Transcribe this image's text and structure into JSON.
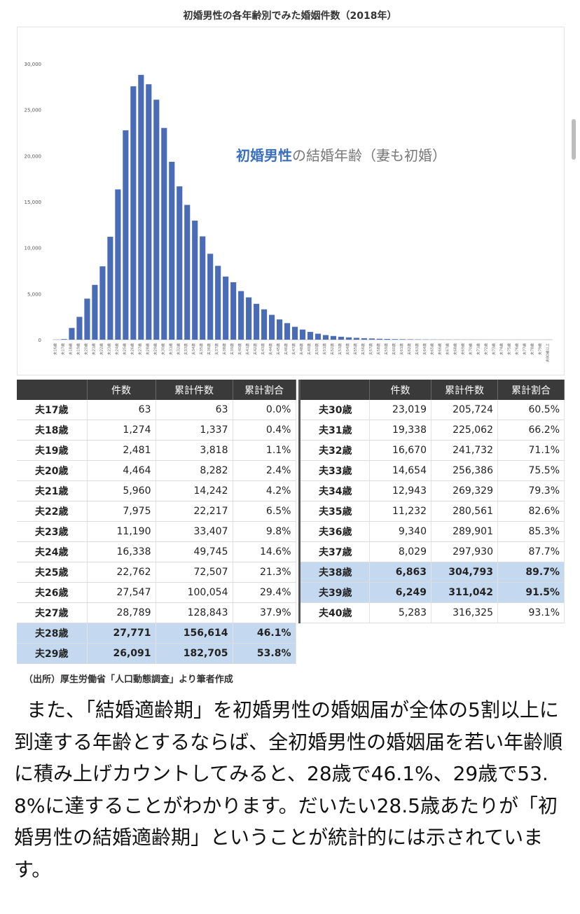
{
  "chart_data": {
    "type": "bar",
    "title": "初婚男性の各年齢別でみた婚姻件数（2018年）",
    "annotation": {
      "highlight": "初婚男性",
      "rest": "の結婚年齢（妻も初婚）"
    },
    "ylim": [
      0,
      30000
    ],
    "yticks": [
      "0",
      "5,000",
      "10,000",
      "15,000",
      "20,000",
      "25,000",
      "30,000"
    ],
    "grid": false,
    "bar_color": "#4a6bb5",
    "categories": [
      "夫16歳",
      "夫17歳",
      "夫18歳",
      "夫19歳",
      "夫20歳",
      "夫21歳",
      "夫22歳",
      "夫23歳",
      "夫24歳",
      "夫25歳",
      "夫26歳",
      "夫27歳",
      "夫28歳",
      "夫29歳",
      "夫30歳",
      "夫31歳",
      "夫32歳",
      "夫33歳",
      "夫34歳",
      "夫35歳",
      "夫36歳",
      "夫37歳",
      "夫38歳",
      "夫39歳",
      "夫40歳",
      "夫41歳",
      "夫42歳",
      "夫43歳",
      "夫44歳",
      "夫45歳",
      "夫46歳",
      "夫47歳",
      "夫48歳",
      "夫49歳",
      "夫50歳",
      "夫51歳",
      "夫52歳",
      "夫53歳",
      "夫54歳",
      "夫55歳",
      "夫56歳",
      "夫57歳",
      "夫58歳",
      "夫59歳",
      "夫60歳",
      "夫61歳",
      "夫62歳",
      "夫63歳",
      "夫64歳",
      "夫65歳",
      "夫66歳",
      "夫67歳",
      "夫68歳",
      "夫69歳",
      "夫70歳",
      "夫71歳",
      "夫72歳",
      "夫73歳",
      "夫74歳",
      "夫75歳",
      "夫76歳",
      "夫77歳",
      "夫78歳",
      "夫79歳",
      "夫80歳以上"
    ],
    "values": [
      10,
      63,
      1274,
      2481,
      4464,
      5960,
      7975,
      11190,
      16338,
      22762,
      27547,
      28789,
      27771,
      26091,
      23019,
      19338,
      16670,
      14654,
      12943,
      11232,
      9340,
      8029,
      6863,
      6249,
      5283,
      4600,
      3900,
      3300,
      2700,
      2200,
      1800,
      1400,
      1100,
      850,
      650,
      500,
      400,
      320,
      250,
      200,
      160,
      130,
      100,
      80,
      60,
      50,
      40,
      30,
      25,
      20,
      15,
      12,
      10,
      8,
      6,
      5,
      4,
      3,
      3,
      2,
      2,
      1,
      1,
      1,
      5
    ]
  },
  "tables": {
    "headers": [
      "",
      "件数",
      "累計件数",
      "累計割合"
    ],
    "left": [
      {
        "age": "夫17歳",
        "count": "63",
        "cumulative": "63",
        "ratio": "0.0%",
        "hl": false
      },
      {
        "age": "夫18歳",
        "count": "1,274",
        "cumulative": "1,337",
        "ratio": "0.4%",
        "hl": false
      },
      {
        "age": "夫19歳",
        "count": "2,481",
        "cumulative": "3,818",
        "ratio": "1.1%",
        "hl": false
      },
      {
        "age": "夫20歳",
        "count": "4,464",
        "cumulative": "8,282",
        "ratio": "2.4%",
        "hl": false
      },
      {
        "age": "夫21歳",
        "count": "5,960",
        "cumulative": "14,242",
        "ratio": "4.2%",
        "hl": false
      },
      {
        "age": "夫22歳",
        "count": "7,975",
        "cumulative": "22,217",
        "ratio": "6.5%",
        "hl": false
      },
      {
        "age": "夫23歳",
        "count": "11,190",
        "cumulative": "33,407",
        "ratio": "9.8%",
        "hl": false
      },
      {
        "age": "夫24歳",
        "count": "16,338",
        "cumulative": "49,745",
        "ratio": "14.6%",
        "hl": false
      },
      {
        "age": "夫25歳",
        "count": "22,762",
        "cumulative": "72,507",
        "ratio": "21.3%",
        "hl": false
      },
      {
        "age": "夫26歳",
        "count": "27,547",
        "cumulative": "100,054",
        "ratio": "29.4%",
        "hl": false
      },
      {
        "age": "夫27歳",
        "count": "28,789",
        "cumulative": "128,843",
        "ratio": "37.9%",
        "hl": false
      },
      {
        "age": "夫28歳",
        "count": "27,771",
        "cumulative": "156,614",
        "ratio": "46.1%",
        "hl": true
      },
      {
        "age": "夫29歳",
        "count": "26,091",
        "cumulative": "182,705",
        "ratio": "53.8%",
        "hl": true
      }
    ],
    "right": [
      {
        "age": "夫30歳",
        "count": "23,019",
        "cumulative": "205,724",
        "ratio": "60.5%",
        "hl": false
      },
      {
        "age": "夫31歳",
        "count": "19,338",
        "cumulative": "225,062",
        "ratio": "66.2%",
        "hl": false
      },
      {
        "age": "夫32歳",
        "count": "16,670",
        "cumulative": "241,732",
        "ratio": "71.1%",
        "hl": false
      },
      {
        "age": "夫33歳",
        "count": "14,654",
        "cumulative": "256,386",
        "ratio": "75.5%",
        "hl": false
      },
      {
        "age": "夫34歳",
        "count": "12,943",
        "cumulative": "269,329",
        "ratio": "79.3%",
        "hl": false
      },
      {
        "age": "夫35歳",
        "count": "11,232",
        "cumulative": "280,561",
        "ratio": "82.6%",
        "hl": false
      },
      {
        "age": "夫36歳",
        "count": "9,340",
        "cumulative": "289,901",
        "ratio": "85.3%",
        "hl": false
      },
      {
        "age": "夫37歳",
        "count": "8,029",
        "cumulative": "297,930",
        "ratio": "87.7%",
        "hl": false
      },
      {
        "age": "夫38歳",
        "count": "6,863",
        "cumulative": "304,793",
        "ratio": "89.7%",
        "hl": true
      },
      {
        "age": "夫39歳",
        "count": "6,249",
        "cumulative": "311,042",
        "ratio": "91.5%",
        "hl": true
      },
      {
        "age": "夫40歳",
        "count": "5,283",
        "cumulative": "316,325",
        "ratio": "93.1%",
        "hl": false
      }
    ]
  },
  "source_note": "（出所）厚生労働省「人口動態調査」より筆者作成",
  "body_text": "また、「結婚適齢期」を初婚男性の婚姻届が全体の5割以上に到達する年齢とするならば、全初婚男性の婚姻届を若い年齢順に積み上げカウントしてみると、28歳で46.1%、29歳で53.8%に達することがわかります。だいたい28.5歳あたりが「初婚男性の結婚適齢期」ということが統計的には示されています。",
  "colors": {
    "bar": "#4a6bb5",
    "highlight_row": "#c4d9ef",
    "header_bg": "#3a3a3a",
    "annotation_blue": "#3a6fbf",
    "annotation_gray": "#777777"
  }
}
